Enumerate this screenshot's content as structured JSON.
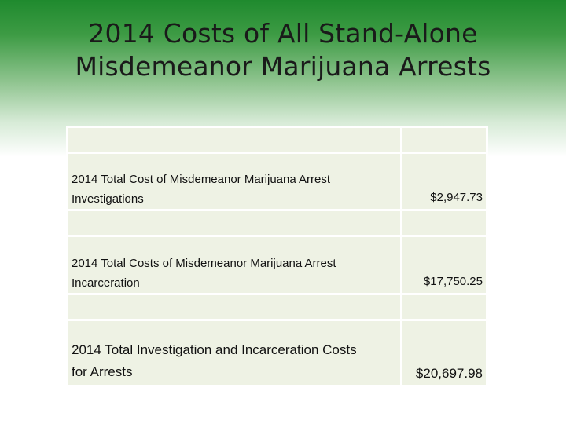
{
  "slide": {
    "title_line1": "2014 Costs of All Stand-Alone",
    "title_line2": "Misdemeanor Marijuana Arrests"
  },
  "table": {
    "rows": [
      {
        "label_line1": "2014  Total Cost of Misdemeanor Marijuana Arrest",
        "label_line2": "Investigations",
        "value": "$2,947.73"
      },
      {
        "label_line1": "2014 Total Costs of Misdemeanor Marijuana Arrest",
        "label_line2": "Incarceration",
        "value": "$17,750.25"
      },
      {
        "label_line1": "2014 Total Investigation and Incarceration Costs",
        "label_line2": "for Arrests",
        "value": "$20,697.98"
      }
    ]
  },
  "colors": {
    "header_green": "#1f8a2e",
    "cell_fill": "#eef2e4"
  }
}
